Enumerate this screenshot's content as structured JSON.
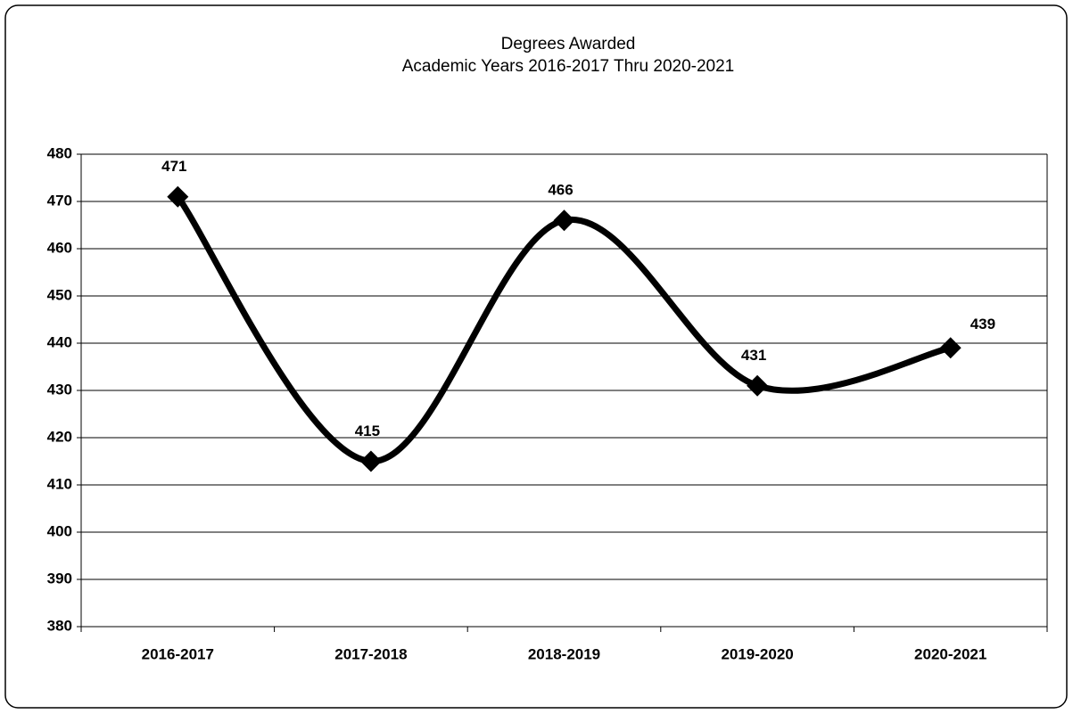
{
  "chart_data": {
    "type": "line",
    "title": "Degrees Awarded",
    "subtitle": "Academic Years 2016-2017 Thru 2020-2021",
    "categories": [
      "2016-2017",
      "2017-2018",
      "2018-2019",
      "2019-2020",
      "2020-2021"
    ],
    "values": [
      471,
      415,
      466,
      431,
      439
    ],
    "color": "#000000",
    "smooth": true,
    "marker": "diamond",
    "ylim": [
      380,
      480
    ],
    "yticks": [
      380,
      390,
      400,
      410,
      420,
      430,
      440,
      450,
      460,
      470,
      480
    ],
    "grid": true
  }
}
